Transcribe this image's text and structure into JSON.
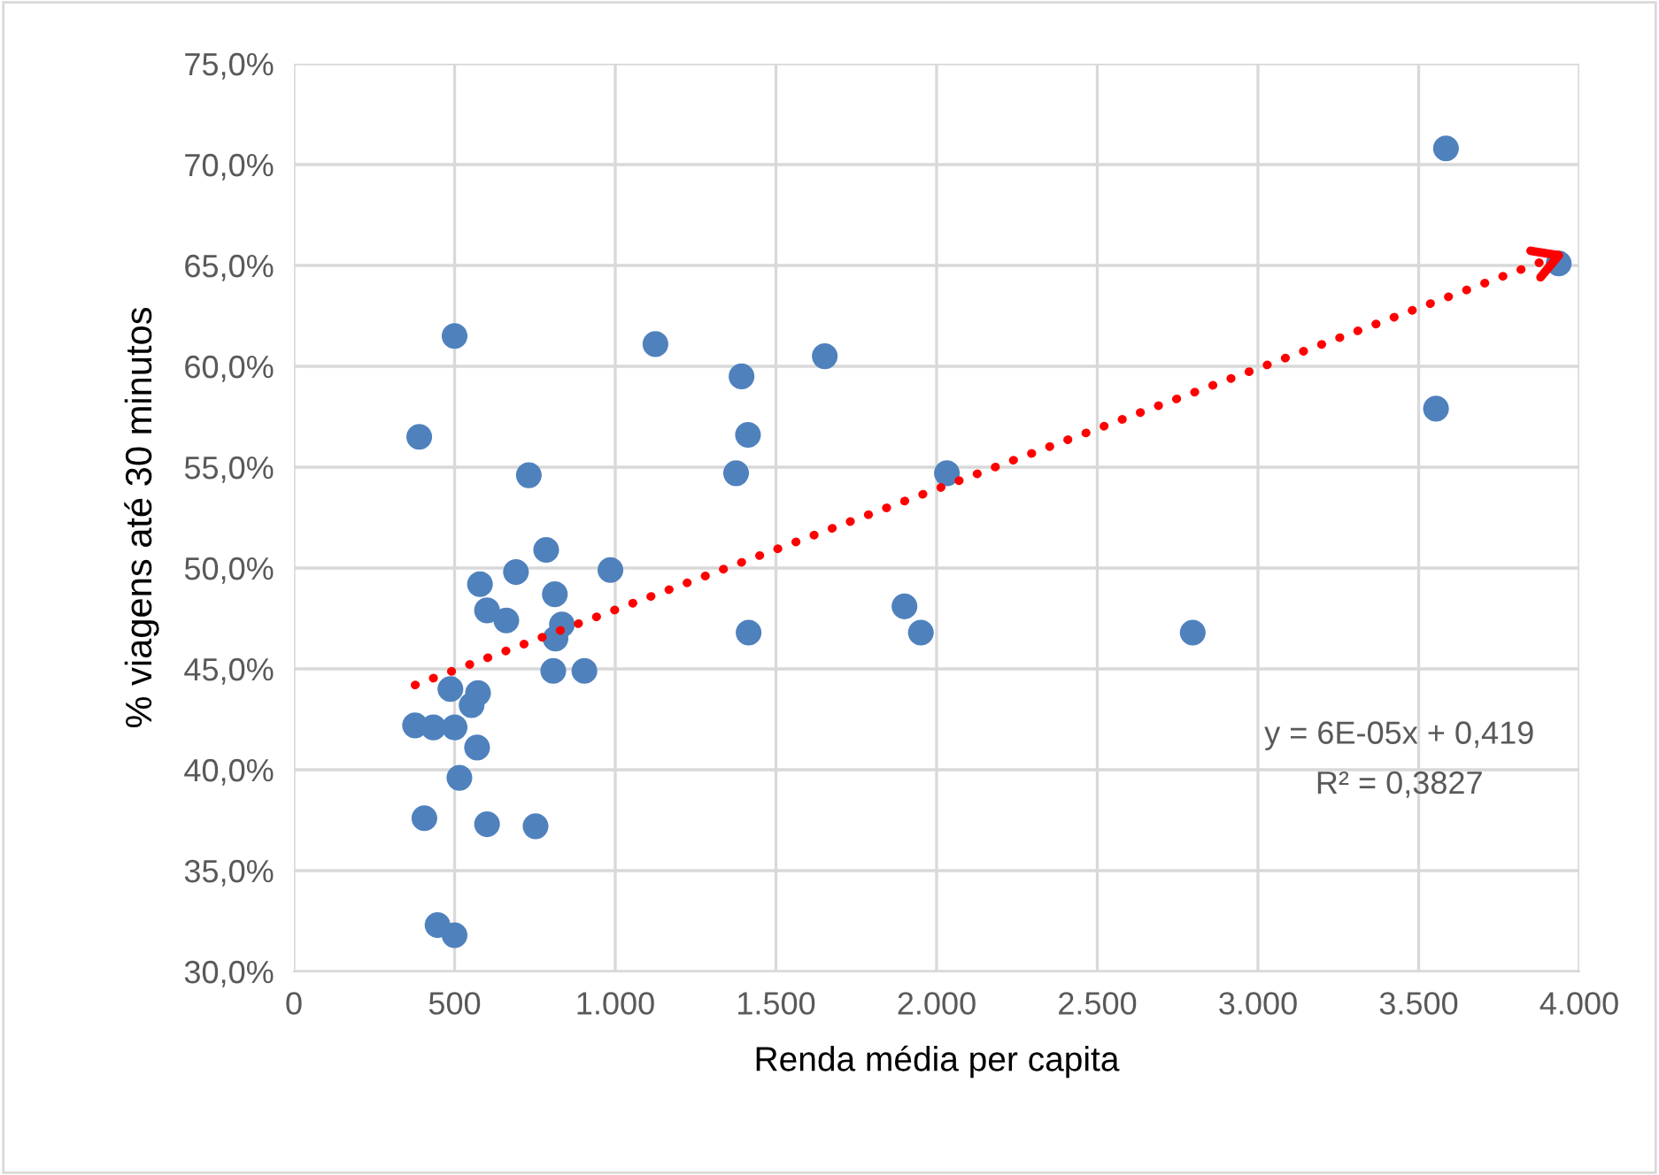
{
  "chart_data": {
    "type": "scatter",
    "xlabel": "Renda média per capita",
    "ylabel": "% viagens até 30 minutos",
    "xlim": [
      0,
      4000
    ],
    "ylim": [
      30,
      75
    ],
    "xticks": [
      0,
      {
        "value": 500,
        "label": "500"
      },
      {
        "value": 1000,
        "label": "1.000"
      },
      {
        "value": 1500,
        "label": "1.500"
      },
      {
        "value": 2000,
        "label": "2.000"
      },
      {
        "value": 2500,
        "label": "2.500"
      },
      {
        "value": 3000,
        "label": "3.000"
      },
      {
        "value": 3500,
        "label": "3.500"
      },
      {
        "value": 4000,
        "label": "4.000"
      }
    ],
    "yticks": [
      {
        "value": 30,
        "label": "30,0%"
      },
      {
        "value": 35,
        "label": "35,0%"
      },
      {
        "value": 40,
        "label": "40,0%"
      },
      {
        "value": 45,
        "label": "45,0%"
      },
      {
        "value": 50,
        "label": "50,0%"
      },
      {
        "value": 55,
        "label": "55,0%"
      },
      {
        "value": 60,
        "label": "60,0%"
      },
      {
        "value": 65,
        "label": "65,0%"
      },
      {
        "value": 70,
        "label": "70,0%"
      },
      {
        "value": 75,
        "label": "75,0%"
      }
    ],
    "grid": true,
    "legend": false,
    "annotations": [
      "y = 6E-05x + 0,419",
      "R² = 0,3827"
    ],
    "series": [
      {
        "color": "#4f81bd",
        "marker": "circle",
        "x": [
          500,
          390,
          731,
          1125,
          1393,
          1413,
          1376,
          785,
          691,
          985,
          579,
          812,
          601,
          661,
          834,
          814,
          1415,
          807,
          904,
          487,
          573,
          553,
          377,
          434,
          500,
          570,
          515,
          406,
          601,
          752,
          447,
          500,
          1652,
          1900,
          1951,
          2032,
          3585,
          3936,
          3554,
          2797
        ],
        "values": [
          61.5,
          56.5,
          54.6,
          61.1,
          59.5,
          56.6,
          54.7,
          50.9,
          49.8,
          49.9,
          49.2,
          48.7,
          47.9,
          47.4,
          47.2,
          46.5,
          46.8,
          44.9,
          44.9,
          44.0,
          43.8,
          43.2,
          42.2,
          42.1,
          42.1,
          41.1,
          39.6,
          37.6,
          37.3,
          37.2,
          32.3,
          31.8,
          60.5,
          48.1,
          46.8,
          54.7,
          70.8,
          65.1,
          57.9,
          46.8
        ]
      },
      {
        "type": "line",
        "color": "#ff0000",
        "line_style": "dotted",
        "x": [
          377,
          3936
        ],
        "values": [
          44.2,
          65.5
        ]
      }
    ]
  }
}
